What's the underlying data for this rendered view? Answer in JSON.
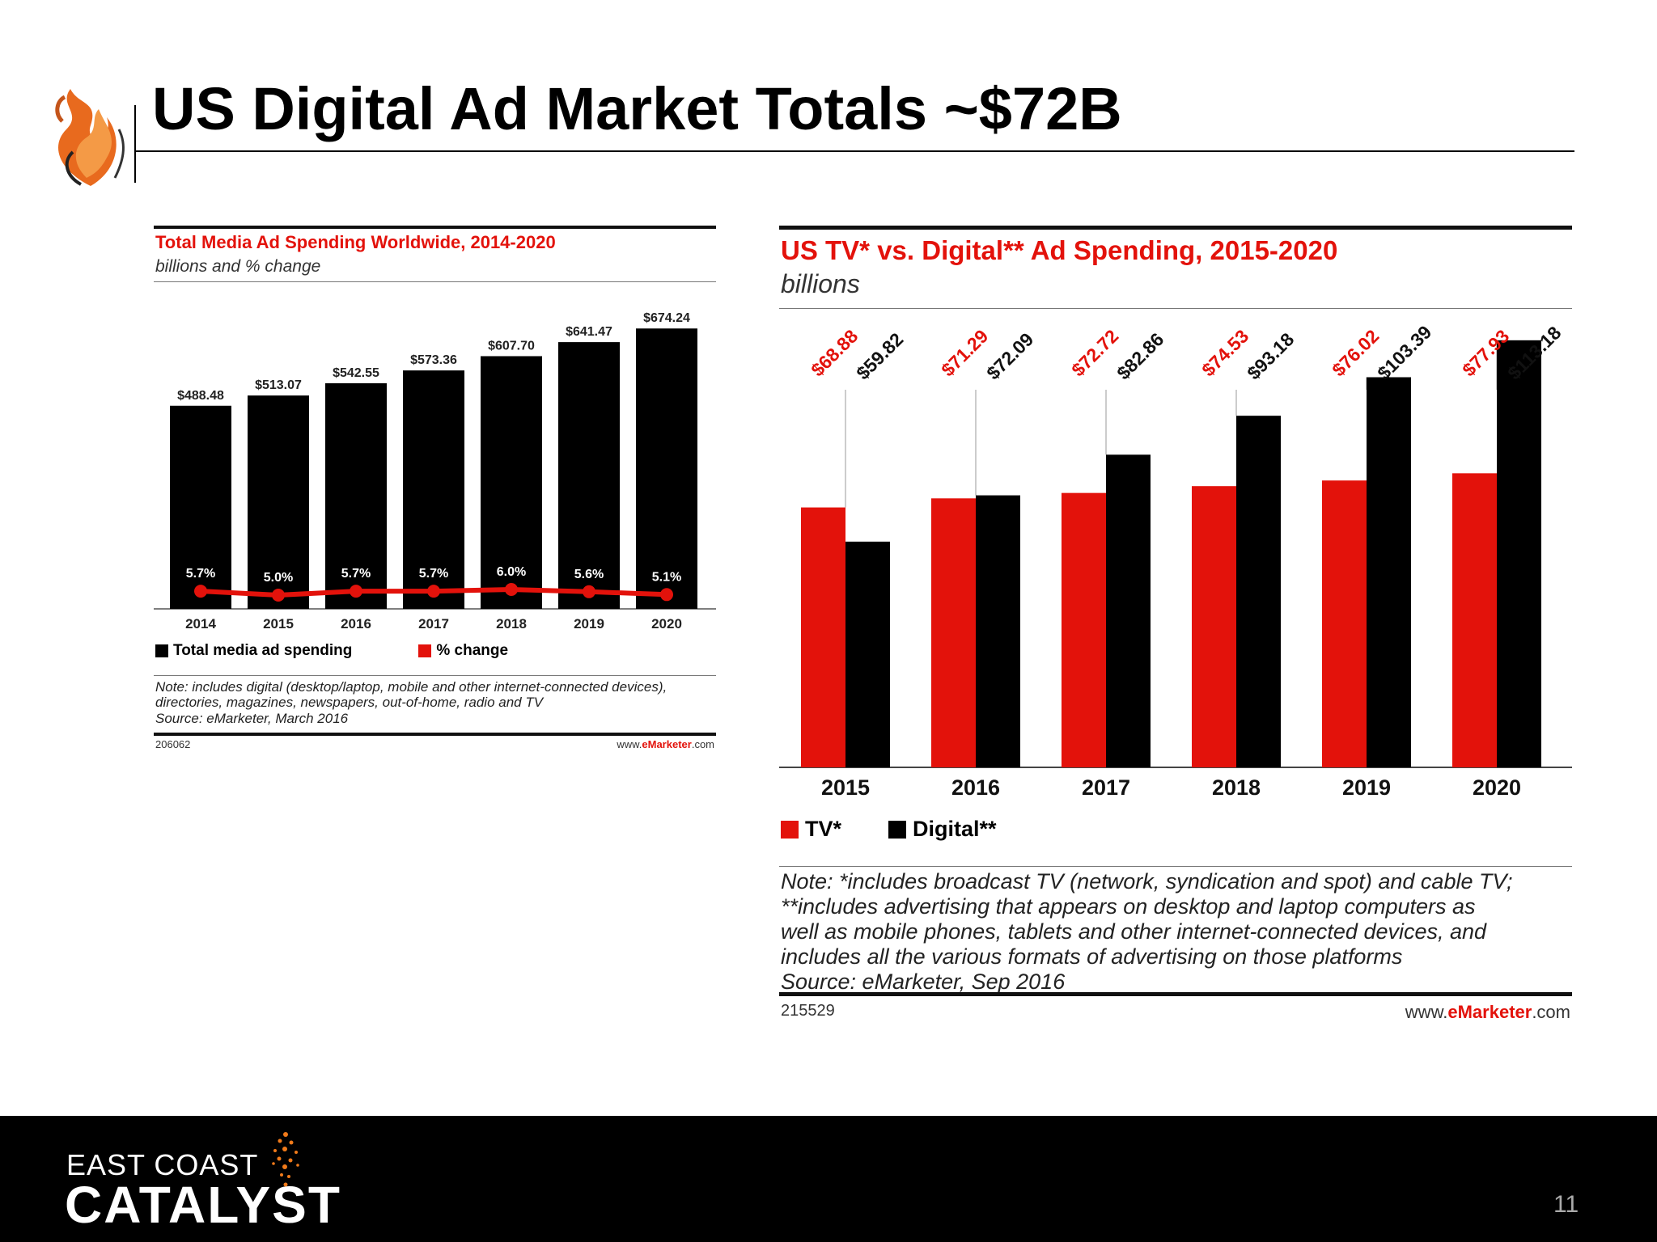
{
  "slide": {
    "title": "US Digital Ad Market Totals ~$72B",
    "page_number": "11"
  },
  "brand": {
    "line1": "EAST COAST",
    "line2": "CATALYST",
    "accent": "#f07a1a"
  },
  "colors": {
    "red": "#e3120b",
    "black": "#000000"
  },
  "chart_data": [
    {
      "type": "bar",
      "title": "Total Media Ad Spending Worldwide, 2014-2020",
      "subtitle": "billions and % change",
      "categories": [
        "2014",
        "2015",
        "2016",
        "2017",
        "2018",
        "2019",
        "2020"
      ],
      "series": [
        {
          "name": "Total media ad spending",
          "color": "#000000",
          "values": [
            488.48,
            513.07,
            542.55,
            573.36,
            607.7,
            641.47,
            674.24
          ],
          "labels": [
            "$488.48",
            "$513.07",
            "$542.55",
            "$573.36",
            "$607.70",
            "$641.47",
            "$674.24"
          ]
        },
        {
          "name": "% change",
          "type": "line",
          "color": "#e3120b",
          "values": [
            5.7,
            5.0,
            5.7,
            5.7,
            6.0,
            5.6,
            5.1
          ],
          "labels": [
            "5.7%",
            "5.0%",
            "5.7%",
            "5.7%",
            "6.0%",
            "5.6%",
            "5.1%"
          ]
        }
      ],
      "legend": [
        {
          "label": "Total media ad spending",
          "color": "#000000"
        },
        {
          "label": "% change",
          "color": "#e3120b"
        }
      ],
      "legend_position": "bottom-left",
      "ylim": [
        0,
        700
      ],
      "note": "Note: includes digital (desktop/laptop, mobile and other internet-connected devices), directories, magazines, newspapers, out-of-home, radio and TV",
      "source": "Source: eMarketer, March 2016",
      "chart_id": "206062",
      "site": {
        "pre": "www.",
        "brand": "eMarketer",
        "post": ".com"
      }
    },
    {
      "type": "bar",
      "title": "US TV* vs. Digital** Ad Spending, 2015-2020",
      "subtitle": "billions",
      "categories": [
        "2015",
        "2016",
        "2017",
        "2018",
        "2019",
        "2020"
      ],
      "series": [
        {
          "name": "TV*",
          "color": "#e3120b",
          "values": [
            68.88,
            71.29,
            72.72,
            74.53,
            76.02,
            77.93
          ],
          "labels": [
            "$68.88",
            "$71.29",
            "$72.72",
            "$74.53",
            "$76.02",
            "$77.93"
          ]
        },
        {
          "name": "Digital**",
          "color": "#000000",
          "values": [
            59.82,
            72.09,
            82.86,
            93.18,
            103.39,
            113.18
          ],
          "labels": [
            "$59.82",
            "$72.09",
            "$82.86",
            "$93.18",
            "$103.39",
            "$113.18"
          ]
        }
      ],
      "legend": [
        {
          "label": "TV*",
          "color": "#e3120b"
        },
        {
          "label": "Digital**",
          "color": "#000000"
        }
      ],
      "legend_position": "bottom-left",
      "ylim": [
        0,
        120
      ],
      "note_lines": [
        "Note: *includes broadcast TV (network, syndication and spot) and cable TV;",
        "**includes advertising that appears on desktop and laptop computers as",
        "well as mobile phones, tablets and other internet-connected devices, and",
        "includes all the various formats of advertising on those platforms"
      ],
      "source": "Source: eMarketer, Sep 2016",
      "chart_id": "215529",
      "site": {
        "pre": "www.",
        "brand": "eMarketer",
        "post": ".com"
      }
    }
  ]
}
